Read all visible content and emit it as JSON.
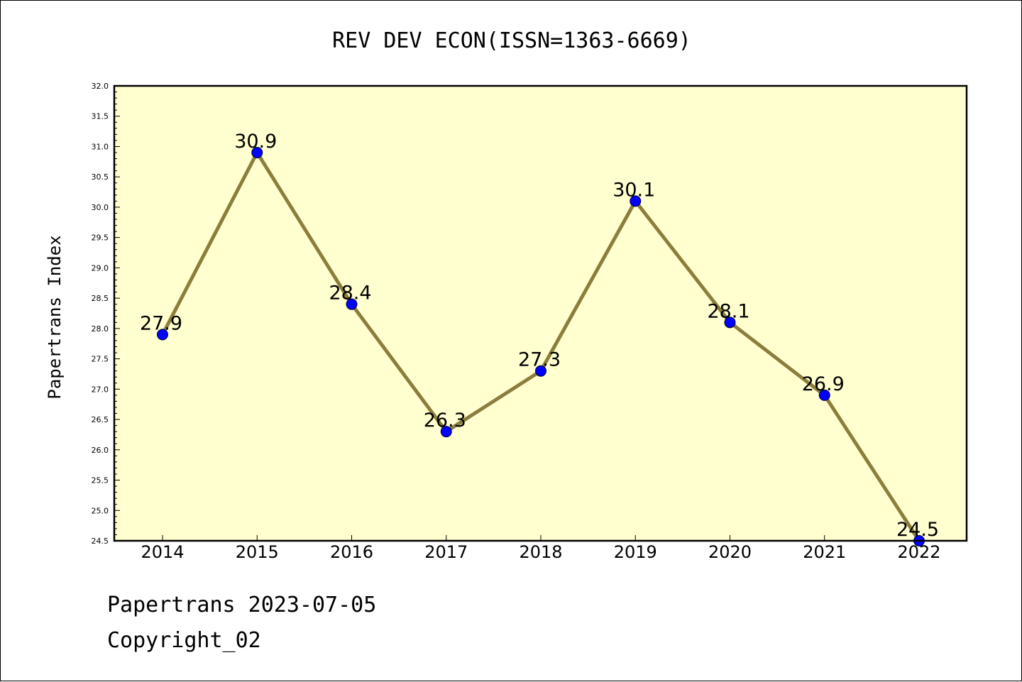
{
  "chart_data": {
    "type": "line",
    "title": "REV DEV ECON(ISSN=1363-6669)",
    "xlabel": "",
    "ylabel": "Papertrans Index",
    "categories": [
      "2014",
      "2015",
      "2016",
      "2017",
      "2018",
      "2019",
      "2020",
      "2021",
      "2022"
    ],
    "series": [
      {
        "values": [
          27.9,
          30.9,
          28.4,
          26.3,
          27.3,
          30.1,
          28.1,
          26.9,
          24.5
        ]
      }
    ],
    "data_labels": [
      "27.9",
      "30.9",
      "28.4",
      "26.3",
      "27.3",
      "30.1",
      "28.1",
      "26.9",
      "24.5"
    ],
    "ylim": [
      24.5,
      32.0
    ],
    "yticks": [
      "24.5",
      "25.0",
      "25.5",
      "26.0",
      "26.5",
      "27.0",
      "27.5",
      "28.0",
      "28.5",
      "29.0",
      "29.5",
      "30.0",
      "30.5",
      "31.0",
      "31.5",
      "32.0"
    ],
    "grid": false,
    "colors": {
      "plot_background": "#ffffd0",
      "line": "#8b7d3a",
      "marker": "#0000ff",
      "axis": "#000000"
    }
  },
  "footer": {
    "line1": "Papertrans 2023-07-05",
    "line2": "Copyright_02"
  }
}
